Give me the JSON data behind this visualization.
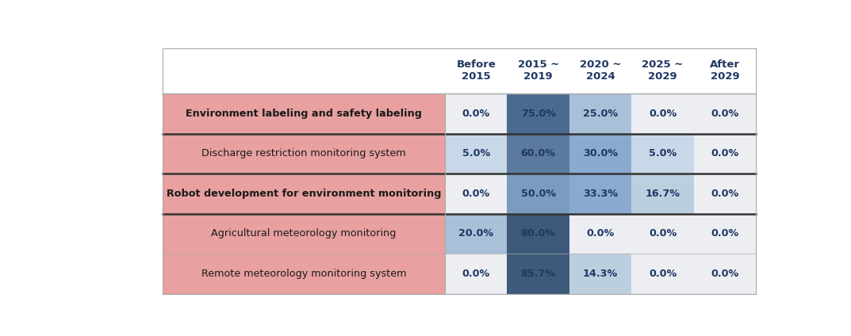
{
  "rows": [
    {
      "label": "Environment labeling and safety labeling",
      "bold": true,
      "values": [
        0.0,
        75.0,
        25.0,
        0.0,
        0.0
      ],
      "display": [
        "0.0%",
        "75.0%",
        "25.0%",
        "0.0%",
        "0.0%"
      ]
    },
    {
      "label": "Discharge restriction monitoring system",
      "bold": false,
      "values": [
        5.0,
        60.0,
        30.0,
        5.0,
        0.0
      ],
      "display": [
        "5.0%",
        "60.0%",
        "30.0%",
        "5.0%",
        "0.0%"
      ]
    },
    {
      "label": "Robot development for environment monitoring",
      "bold": true,
      "values": [
        0.0,
        50.0,
        33.3,
        16.7,
        0.0
      ],
      "display": [
        "0.0%",
        "50.0%",
        "33.3%",
        "16.7%",
        "0.0%"
      ]
    },
    {
      "label": "Agricultural meteorology monitoring",
      "bold": false,
      "values": [
        20.0,
        80.0,
        0.0,
        0.0,
        0.0
      ],
      "display": [
        "20.0%",
        "80.0%",
        "0.0%",
        "0.0%",
        "0.0%"
      ]
    },
    {
      "label": "Remote meteorology monitoring system",
      "bold": false,
      "values": [
        0.0,
        85.7,
        14.3,
        0.0,
        0.0
      ],
      "display": [
        "0.0%",
        "85.7%",
        "14.3%",
        "0.0%",
        "0.0%"
      ]
    }
  ],
  "col_headers": [
    "Before\n2015",
    "2015 ~\n2019",
    "2020 ~\n2024",
    "2025 ~\n2029",
    "After\n2029"
  ],
  "row_bg_color": "#E8A0A0",
  "header_text_color": "#1F3864",
  "cell_text_color": "#1F3864",
  "fig_bg": "#FFFFFF",
  "group_dividers_after": [
    1,
    2,
    3
  ],
  "color_thresholds": [
    {
      "min": 80,
      "color": "#3D5A7A"
    },
    {
      "min": 70,
      "color": "#4A6A8F"
    },
    {
      "min": 55,
      "color": "#5B7A9E"
    },
    {
      "min": 45,
      "color": "#7A9CBF"
    },
    {
      "min": 30,
      "color": "#8AAACF"
    },
    {
      "min": 18,
      "color": "#A8C0D8"
    },
    {
      "min": 12,
      "color": "#BCCFDF"
    },
    {
      "min": 4,
      "color": "#C8D8E8"
    },
    {
      "min": 0.1,
      "color": "#D4E0EC"
    },
    {
      "min": 0,
      "color": "#ECEEF2"
    }
  ]
}
